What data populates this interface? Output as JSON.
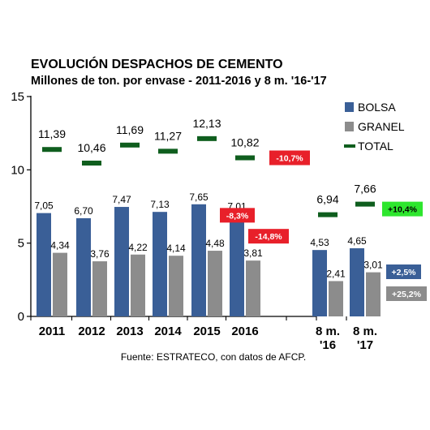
{
  "chart_data": {
    "type": "bar",
    "title": "EVOLUCIÓN DESPACHOS DE CEMENTO",
    "subtitle": "Millones de ton. por envase - 2011-2016 y 8 m. '16-'17",
    "categories": [
      "2011",
      "2012",
      "2013",
      "2014",
      "2015",
      "2016",
      "8 m. '16",
      "8 m. '17"
    ],
    "category_lines": [
      [
        "2011"
      ],
      [
        "2012"
      ],
      [
        "2013"
      ],
      [
        "2014"
      ],
      [
        "2015"
      ],
      [
        "2016"
      ],
      [
        "8 m.",
        "'16"
      ],
      [
        "8 m.",
        "'17"
      ]
    ],
    "series": [
      {
        "name": "BOLSA",
        "type": "bar",
        "color": "#3a5f97",
        "values": [
          7.05,
          6.7,
          7.47,
          7.13,
          7.65,
          7.01,
          4.53,
          4.65
        ],
        "labels": [
          "7,05",
          "6,70",
          "7,47",
          "7,13",
          "7,65",
          "7,01",
          "4,53",
          "4,65"
        ]
      },
      {
        "name": "GRANEL",
        "type": "bar",
        "color": "#8c8c8c",
        "values": [
          4.34,
          3.76,
          4.22,
          4.14,
          4.48,
          3.81,
          2.41,
          3.01
        ],
        "labels": [
          "4,34",
          "3,76",
          "4,22",
          "4,14",
          "4,48",
          "3,81",
          "2,41",
          "3,01"
        ]
      },
      {
        "name": "TOTAL",
        "type": "marker",
        "color": "#0f5e1e",
        "values": [
          11.39,
          10.46,
          11.69,
          11.27,
          12.13,
          10.82,
          6.94,
          7.66
        ],
        "labels": [
          "11,39",
          "10,46",
          "11,69",
          "11,27",
          "12,13",
          "10,82",
          "6,94",
          "7,66"
        ]
      }
    ],
    "yticks": [
      "0",
      "5",
      "10",
      "15"
    ],
    "ylim": [
      0,
      15
    ],
    "grid": false,
    "legend_position": "top-right",
    "annotations": [
      {
        "text": "-10,7%",
        "color": "#e8202a",
        "text_color": "#ffffff",
        "anchor": "total-2016"
      },
      {
        "text": "-8,3%",
        "color": "#e8202a",
        "text_color": "#ffffff",
        "anchor": "bolsa-2016"
      },
      {
        "text": "-14,8%",
        "color": "#e8202a",
        "text_color": "#ffffff",
        "anchor": "granel-2016"
      },
      {
        "text": "+10,4%",
        "color": "#2ee62e",
        "text_color": "#000000",
        "anchor": "total-8m17"
      },
      {
        "text": "+2,5%",
        "color": "#3a5f97",
        "text_color": "#ffffff",
        "anchor": "bolsa-8m17"
      },
      {
        "text": "+25,2%",
        "color": "#8c8c8c",
        "text_color": "#ffffff",
        "anchor": "granel-8m17"
      }
    ]
  },
  "source": "Fuente: ESTRATECO, con datos de AFCP."
}
